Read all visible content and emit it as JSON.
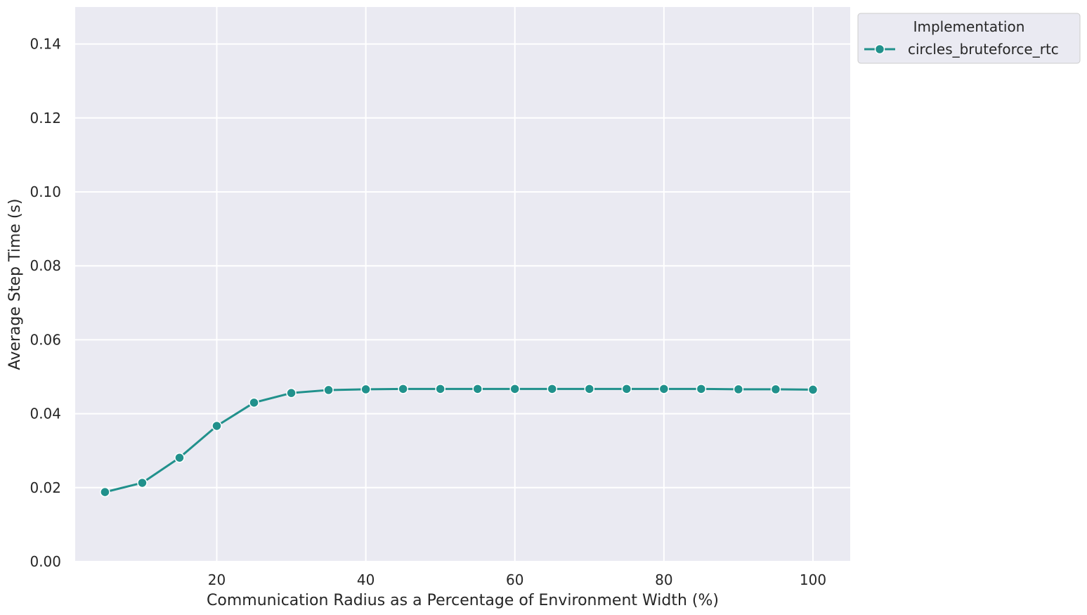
{
  "chart_data": {
    "type": "line",
    "title": "",
    "xlabel": "Communication Radius as a Percentage of Environment Width (%)",
    "ylabel": "Average Step Time (s)",
    "xlim": [
      1,
      105
    ],
    "ylim": [
      0,
      0.15
    ],
    "xticks": [
      20,
      40,
      60,
      80,
      100
    ],
    "xtick_labels": [
      "20",
      "40",
      "60",
      "80",
      "100"
    ],
    "yticks": [
      0,
      0.02,
      0.04,
      0.06,
      0.08,
      0.1,
      0.12,
      0.14
    ],
    "ytick_labels": [
      "0.00",
      "0.02",
      "0.04",
      "0.06",
      "0.08",
      "0.10",
      "0.12",
      "0.14"
    ],
    "grid": true,
    "legend": {
      "title": "Implementation",
      "placement": "outside upper-right"
    },
    "x": [
      5,
      10,
      15,
      20,
      25,
      30,
      35,
      40,
      45,
      50,
      55,
      60,
      65,
      70,
      75,
      80,
      85,
      90,
      95,
      100
    ],
    "series": [
      {
        "name": "circles_bruteforce_rtc",
        "color": "#21918c",
        "marker": "circle",
        "values": [
          0.0188,
          0.0213,
          0.0281,
          0.0367,
          0.043,
          0.0456,
          0.0464,
          0.0466,
          0.0467,
          0.0467,
          0.0467,
          0.0467,
          0.0467,
          0.0467,
          0.0467,
          0.0467,
          0.0467,
          0.0466,
          0.0466,
          0.0465
        ]
      }
    ]
  }
}
